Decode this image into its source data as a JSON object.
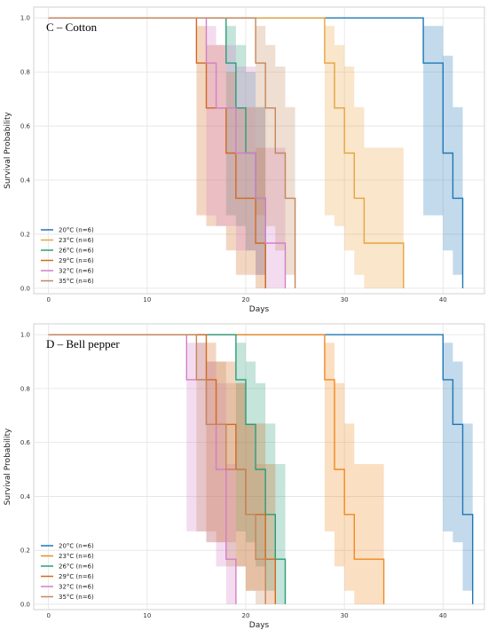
{
  "chart_data": [
    {
      "type": "line",
      "subtype": "kaplan-meier survival curves with confidence bands",
      "title": "C – Cotton",
      "xlabel": "Days",
      "ylabel": "Survival Probability",
      "xlim": [
        -1.5,
        44.2
      ],
      "ylim": [
        -0.02,
        1.04
      ],
      "xticks": [
        0,
        10,
        20,
        30,
        40
      ],
      "yticks": [
        0.0,
        0.2,
        0.4,
        0.6,
        0.8,
        1.0
      ],
      "grid": true,
      "legend_position": "bottom-left",
      "series": [
        {
          "name": "20°C (n=6)",
          "color": "#1f77b4",
          "x": [
            0,
            38,
            40,
            41,
            42
          ],
          "y": [
            1.0,
            0.833,
            0.5,
            0.333,
            0.0
          ],
          "ci_low": [
            1.0,
            0.27,
            0.14,
            0.05,
            0.0
          ],
          "ci_high": [
            1.0,
            0.97,
            0.86,
            0.67,
            0.0
          ]
        },
        {
          "name": "23°C (n=6)",
          "color": "#e8a33d",
          "x": [
            0,
            28,
            29,
            30,
            31,
            32,
            36
          ],
          "y": [
            1.0,
            0.833,
            0.667,
            0.5,
            0.333,
            0.167,
            0.0
          ],
          "ci_low": [
            1.0,
            0.27,
            0.23,
            0.14,
            0.05,
            0.0,
            0.0
          ],
          "ci_high": [
            1.0,
            0.97,
            0.9,
            0.82,
            0.67,
            0.52,
            0.0
          ]
        },
        {
          "name": "26°C (n=6)",
          "color": "#2a9d78",
          "x": [
            0,
            18,
            19,
            20,
            21,
            22
          ],
          "y": [
            1.0,
            0.833,
            0.667,
            0.5,
            0.333,
            0.0
          ],
          "ci_low": [
            1.0,
            0.27,
            0.23,
            0.14,
            0.05,
            0.0
          ],
          "ci_high": [
            1.0,
            0.97,
            0.9,
            0.8,
            0.67,
            0.0
          ]
        },
        {
          "name": "29°C (n=6)",
          "color": "#d2691e",
          "x": [
            0,
            15,
            16,
            18,
            19,
            21,
            22
          ],
          "y": [
            1.0,
            0.833,
            0.667,
            0.5,
            0.333,
            0.167,
            0.0
          ],
          "ci_low": [
            1.0,
            0.27,
            0.23,
            0.14,
            0.05,
            0.0,
            0.0
          ],
          "ci_high": [
            1.0,
            0.97,
            0.9,
            0.8,
            0.67,
            0.52,
            0.0
          ]
        },
        {
          "name": "32°C (n=6)",
          "color": "#d17fc7",
          "x": [
            0,
            16,
            17,
            19,
            21,
            22,
            24
          ],
          "y": [
            1.0,
            0.833,
            0.667,
            0.5,
            0.333,
            0.167,
            0.0
          ],
          "ci_low": [
            1.0,
            0.27,
            0.23,
            0.14,
            0.05,
            0.0,
            0.0
          ],
          "ci_high": [
            1.0,
            0.97,
            0.9,
            0.82,
            0.67,
            0.52,
            0.0
          ]
        },
        {
          "name": "35°C (n=6)",
          "color": "#c4865a",
          "x": [
            0,
            21,
            22,
            23,
            24,
            25
          ],
          "y": [
            1.0,
            0.833,
            0.667,
            0.5,
            0.333,
            0.0
          ],
          "ci_low": [
            1.0,
            0.27,
            0.23,
            0.14,
            0.05,
            0.0
          ],
          "ci_high": [
            1.0,
            0.97,
            0.9,
            0.82,
            0.67,
            0.0
          ]
        }
      ]
    },
    {
      "type": "line",
      "subtype": "kaplan-meier survival curves with confidence bands",
      "title": "D – Bell pepper",
      "xlabel": "Days",
      "ylabel": "Survival Probability",
      "xlim": [
        -1.5,
        44.2
      ],
      "ylim": [
        -0.02,
        1.04
      ],
      "xticks": [
        0,
        10,
        20,
        30,
        40
      ],
      "yticks": [
        0.0,
        0.2,
        0.4,
        0.6,
        0.8,
        1.0
      ],
      "grid": true,
      "legend_position": "bottom-left",
      "series": [
        {
          "name": "20°C (n=6)",
          "color": "#1f77b4",
          "x": [
            0,
            40,
            41,
            42,
            43
          ],
          "y": [
            1.0,
            0.833,
            0.667,
            0.333,
            0.0
          ],
          "ci_low": [
            1.0,
            0.27,
            0.23,
            0.05,
            0.0
          ],
          "ci_high": [
            1.0,
            0.97,
            0.9,
            0.67,
            0.0
          ]
        },
        {
          "name": "23°C (n=6)",
          "color": "#ef8a1f",
          "x": [
            0,
            28,
            29,
            30,
            31,
            34
          ],
          "y": [
            1.0,
            0.833,
            0.5,
            0.333,
            0.167,
            0.0
          ],
          "ci_low": [
            1.0,
            0.27,
            0.14,
            0.05,
            0.0,
            0.0
          ],
          "ci_high": [
            1.0,
            0.97,
            0.82,
            0.67,
            0.52,
            0.0
          ]
        },
        {
          "name": "26°C (n=6)",
          "color": "#2a9d78",
          "x": [
            0,
            19,
            20,
            21,
            22,
            23,
            24
          ],
          "y": [
            1.0,
            0.833,
            0.667,
            0.5,
            0.333,
            0.167,
            0.0
          ],
          "ci_low": [
            1.0,
            0.27,
            0.23,
            0.14,
            0.05,
            0.0,
            0.0
          ],
          "ci_high": [
            1.0,
            0.97,
            0.9,
            0.82,
            0.67,
            0.52,
            0.0
          ]
        },
        {
          "name": "29°C (n=6)",
          "color": "#d2691e",
          "x": [
            0,
            16,
            17,
            19,
            20,
            22,
            23
          ],
          "y": [
            1.0,
            0.833,
            0.667,
            0.5,
            0.333,
            0.167,
            0.0
          ],
          "ci_low": [
            1.0,
            0.27,
            0.23,
            0.14,
            0.05,
            0.0,
            0.0
          ],
          "ci_high": [
            1.0,
            0.97,
            0.9,
            0.82,
            0.67,
            0.52,
            0.0
          ]
        },
        {
          "name": "32°C (n=6)",
          "color": "#d17fc7",
          "x": [
            0,
            14,
            16,
            17,
            18,
            19
          ],
          "y": [
            1.0,
            0.833,
            0.667,
            0.5,
            0.167,
            0.0
          ],
          "ci_low": [
            1.0,
            0.27,
            0.23,
            0.14,
            0.0,
            0.0
          ],
          "ci_high": [
            1.0,
            0.97,
            0.9,
            0.82,
            0.52,
            0.0
          ]
        },
        {
          "name": "35°C (n=6)",
          "color": "#c4865a",
          "x": [
            0,
            15,
            16,
            18,
            20,
            21,
            22
          ],
          "y": [
            1.0,
            0.833,
            0.667,
            0.5,
            0.333,
            0.167,
            0.0
          ],
          "ci_low": [
            1.0,
            0.27,
            0.23,
            0.14,
            0.05,
            0.0,
            0.0
          ],
          "ci_high": [
            1.0,
            0.97,
            0.9,
            0.82,
            0.67,
            0.52,
            0.0
          ]
        }
      ]
    }
  ]
}
